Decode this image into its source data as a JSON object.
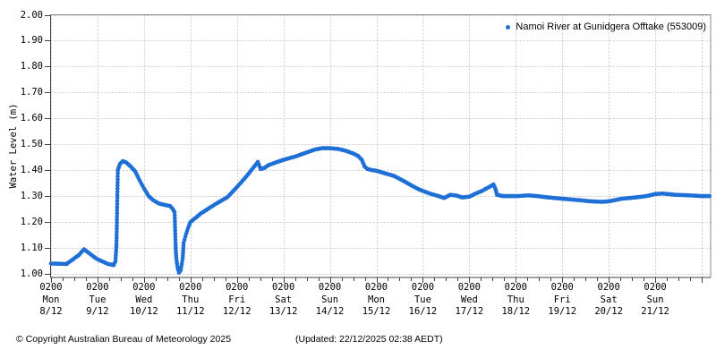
{
  "chart": {
    "y_axis_label": "Water Level (m)",
    "footer": {
      "copyright": "© Copyright Australian Bureau of Meteorology 2025",
      "updated": "(Updated: 22/12/2025 02:38 AEDT)"
    }
  },
  "colors": {
    "accent": "#1e6fd6",
    "grid": "#c9c9c9",
    "border": "#8a8a8a",
    "axis": "#444444",
    "text": "#000000"
  },
  "chart_data": {
    "type": "scatter",
    "title": "",
    "xlabel": "",
    "ylabel": "Water Level (m)",
    "ylim": [
      1.0,
      2.0
    ],
    "grid": "dashed",
    "legend_position": "top-right",
    "y_tick_labels": [
      "2.00",
      "1.90",
      "1.80",
      "1.70",
      "1.60",
      "1.50",
      "1.40",
      "1.30",
      "1.20",
      "1.10",
      "1.00"
    ],
    "x_ticks": [
      {
        "time": "0200",
        "day": "Mon",
        "date": "8/12"
      },
      {
        "time": "0200",
        "day": "Tue",
        "date": "9/12"
      },
      {
        "time": "0200",
        "day": "Wed",
        "date": "10/12"
      },
      {
        "time": "0200",
        "day": "Thu",
        "date": "11/12"
      },
      {
        "time": "0200",
        "day": "Fri",
        "date": "12/12"
      },
      {
        "time": "0200",
        "day": "Sat",
        "date": "13/12"
      },
      {
        "time": "0200",
        "day": "Sun",
        "date": "14/12"
      },
      {
        "time": "0200",
        "day": "Mon",
        "date": "15/12"
      },
      {
        "time": "0200",
        "day": "Tue",
        "date": "16/12"
      },
      {
        "time": "0200",
        "day": "Wed",
        "date": "17/12"
      },
      {
        "time": "0200",
        "day": "Thu",
        "date": "18/12"
      },
      {
        "time": "0200",
        "day": "Fri",
        "date": "19/12"
      },
      {
        "time": "0200",
        "day": "Sat",
        "date": "20/12"
      },
      {
        "time": "0200",
        "day": "Sun",
        "date": "21/12"
      }
    ],
    "x_hours_per_tick": 24,
    "x_range_hours": [
      0,
      340
    ],
    "series": [
      {
        "name": "Namoi River at Gunidgera Offtake (553009)",
        "color": "#1e6fd6",
        "marker": "dot",
        "points_t_hours_value_m": [
          [
            0,
            1.04
          ],
          [
            8,
            1.038
          ],
          [
            14.3,
            1.072
          ],
          [
            17,
            1.095
          ],
          [
            20,
            1.078
          ],
          [
            23.6,
            1.058
          ],
          [
            26.5,
            1.048
          ],
          [
            29.5,
            1.038
          ],
          [
            32.4,
            1.034
          ],
          [
            33.3,
            1.05
          ],
          [
            33.8,
            1.115
          ],
          [
            34.5,
            1.4
          ],
          [
            35.6,
            1.424
          ],
          [
            37,
            1.435
          ],
          [
            38.8,
            1.43
          ],
          [
            41.2,
            1.414
          ],
          [
            43.5,
            1.395
          ],
          [
            45.8,
            1.36
          ],
          [
            48,
            1.33
          ],
          [
            50.4,
            1.3
          ],
          [
            52.7,
            1.285
          ],
          [
            55.5,
            1.272
          ],
          [
            58.7,
            1.266
          ],
          [
            61.5,
            1.262
          ],
          [
            62.9,
            1.25
          ],
          [
            63.8,
            1.238
          ],
          [
            64.3,
            1.12
          ],
          [
            64.6,
            1.07
          ],
          [
            65.2,
            1.03
          ],
          [
            66.1,
            1.005
          ],
          [
            67,
            1.015
          ],
          [
            68,
            1.06
          ],
          [
            68.5,
            1.12
          ],
          [
            69.8,
            1.155
          ],
          [
            71.2,
            1.185
          ],
          [
            72,
            1.2
          ],
          [
            74.5,
            1.215
          ],
          [
            77.2,
            1.232
          ],
          [
            80.9,
            1.25
          ],
          [
            84.6,
            1.268
          ],
          [
            88.3,
            1.284
          ],
          [
            91.1,
            1.296
          ],
          [
            93.9,
            1.318
          ],
          [
            96,
            1.335
          ],
          [
            99,
            1.36
          ],
          [
            102.2,
            1.388
          ],
          [
            105,
            1.415
          ],
          [
            106.8,
            1.432
          ],
          [
            108.2,
            1.405
          ],
          [
            110,
            1.408
          ],
          [
            112.4,
            1.42
          ],
          [
            116.1,
            1.43
          ],
          [
            120,
            1.44
          ],
          [
            126.2,
            1.453
          ],
          [
            131.8,
            1.468
          ],
          [
            136.4,
            1.48
          ],
          [
            140,
            1.485
          ],
          [
            144,
            1.485
          ],
          [
            148.5,
            1.482
          ],
          [
            152.2,
            1.475
          ],
          [
            155.9,
            1.465
          ],
          [
            158.6,
            1.455
          ],
          [
            160.5,
            1.44
          ],
          [
            161.9,
            1.415
          ],
          [
            163.3,
            1.405
          ],
          [
            166,
            1.4
          ],
          [
            168,
            1.398
          ],
          [
            172.5,
            1.388
          ],
          [
            177.1,
            1.378
          ],
          [
            181.7,
            1.36
          ],
          [
            186.4,
            1.34
          ],
          [
            190,
            1.326
          ],
          [
            192,
            1.32
          ],
          [
            195.6,
            1.31
          ],
          [
            200.2,
            1.3
          ],
          [
            203,
            1.293
          ],
          [
            206.2,
            1.305
          ],
          [
            209.5,
            1.302
          ],
          [
            212.3,
            1.295
          ],
          [
            216,
            1.298
          ],
          [
            218.8,
            1.308
          ],
          [
            222.5,
            1.32
          ],
          [
            226.2,
            1.335
          ],
          [
            228.5,
            1.345
          ],
          [
            229.4,
            1.33
          ],
          [
            230.3,
            1.305
          ],
          [
            233.5,
            1.3
          ],
          [
            240,
            1.3
          ],
          [
            246.5,
            1.303
          ],
          [
            251.1,
            1.3
          ],
          [
            256.7,
            1.295
          ],
          [
            264,
            1.29
          ],
          [
            271.9,
            1.285
          ],
          [
            278.8,
            1.28
          ],
          [
            284.4,
            1.278
          ],
          [
            288,
            1.28
          ],
          [
            294.9,
            1.29
          ],
          [
            301.9,
            1.295
          ],
          [
            307.4,
            1.3
          ],
          [
            312,
            1.308
          ],
          [
            315.7,
            1.31
          ],
          [
            322.6,
            1.305
          ],
          [
            329.6,
            1.303
          ],
          [
            336.5,
            1.3
          ],
          [
            340,
            1.3
          ]
        ]
      }
    ]
  }
}
